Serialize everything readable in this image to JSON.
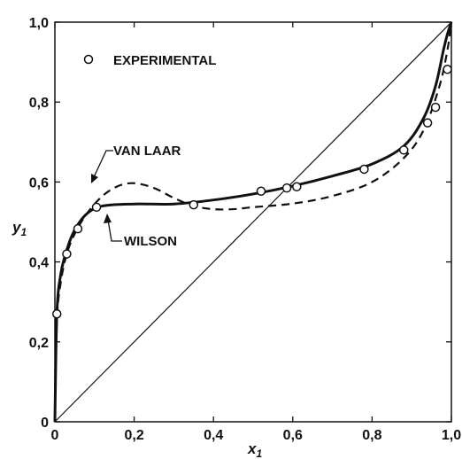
{
  "chart_data": {
    "type": "line",
    "xlabel": "x",
    "xlabel_sub": "1",
    "ylabel": "y",
    "ylabel_sub": "1",
    "xlim": [
      0,
      1
    ],
    "ylim": [
      0,
      1
    ],
    "grid": false,
    "x_ticks": [
      {
        "value": 0,
        "label": "0"
      },
      {
        "value": 0.2,
        "label": "0,2"
      },
      {
        "value": 0.4,
        "label": "0,4"
      },
      {
        "value": 0.6,
        "label": "0,6"
      },
      {
        "value": 0.8,
        "label": "0,8"
      },
      {
        "value": 1.0,
        "label": "1,0"
      }
    ],
    "y_ticks": [
      {
        "value": 0,
        "label": "0"
      },
      {
        "value": 0.2,
        "label": "0,2"
      },
      {
        "value": 0.4,
        "label": "0,4"
      },
      {
        "value": 0.6,
        "label": "0,6"
      },
      {
        "value": 0.8,
        "label": "0,8"
      },
      {
        "value": 1.0,
        "label": "1,0"
      }
    ],
    "legend": {
      "placement": "top-left",
      "label": "EXPERIMENTAL"
    },
    "series": [
      {
        "name": "EXPERIMENTAL",
        "style": "markers",
        "x": [
          0.005,
          0.03,
          0.058,
          0.105,
          0.35,
          0.52,
          0.585,
          0.61,
          0.78,
          0.88,
          0.94,
          0.96,
          0.99
        ],
        "y": [
          0.27,
          0.42,
          0.483,
          0.537,
          0.543,
          0.577,
          0.585,
          0.588,
          0.632,
          0.68,
          0.748,
          0.787,
          0.882
        ]
      },
      {
        "name": "WILSON",
        "style": "solid",
        "x": [
          0,
          0.005,
          0.015,
          0.03,
          0.05,
          0.08,
          0.12,
          0.2,
          0.3,
          0.4,
          0.5,
          0.6,
          0.7,
          0.8,
          0.88,
          0.93,
          0.96,
          0.98,
          0.99,
          1.0
        ],
        "y": [
          0,
          0.27,
          0.37,
          0.43,
          0.48,
          0.52,
          0.54,
          0.545,
          0.545,
          0.555,
          0.57,
          0.59,
          0.615,
          0.645,
          0.69,
          0.76,
          0.84,
          0.93,
          0.97,
          1.0
        ]
      },
      {
        "name": "VAN LAAR",
        "style": "dashed",
        "x": [
          0,
          0.005,
          0.015,
          0.03,
          0.05,
          0.08,
          0.12,
          0.16,
          0.2,
          0.25,
          0.3,
          0.35,
          0.4,
          0.45,
          0.5,
          0.6,
          0.7,
          0.8,
          0.88,
          0.93,
          0.97,
          0.99,
          1.0
        ],
        "y": [
          0,
          0.25,
          0.35,
          0.42,
          0.47,
          0.52,
          0.565,
          0.59,
          0.597,
          0.585,
          0.56,
          0.54,
          0.532,
          0.532,
          0.537,
          0.546,
          0.565,
          0.6,
          0.66,
          0.73,
          0.84,
          0.93,
          1.0
        ]
      },
      {
        "name": "diagonal",
        "style": "thin",
        "x": [
          0,
          1
        ],
        "y": [
          0,
          1
        ]
      }
    ],
    "annotations": [
      {
        "text": "VAN LAAR",
        "series": "VAN LAAR"
      },
      {
        "text": "WILSON",
        "series": "WILSON"
      }
    ]
  }
}
